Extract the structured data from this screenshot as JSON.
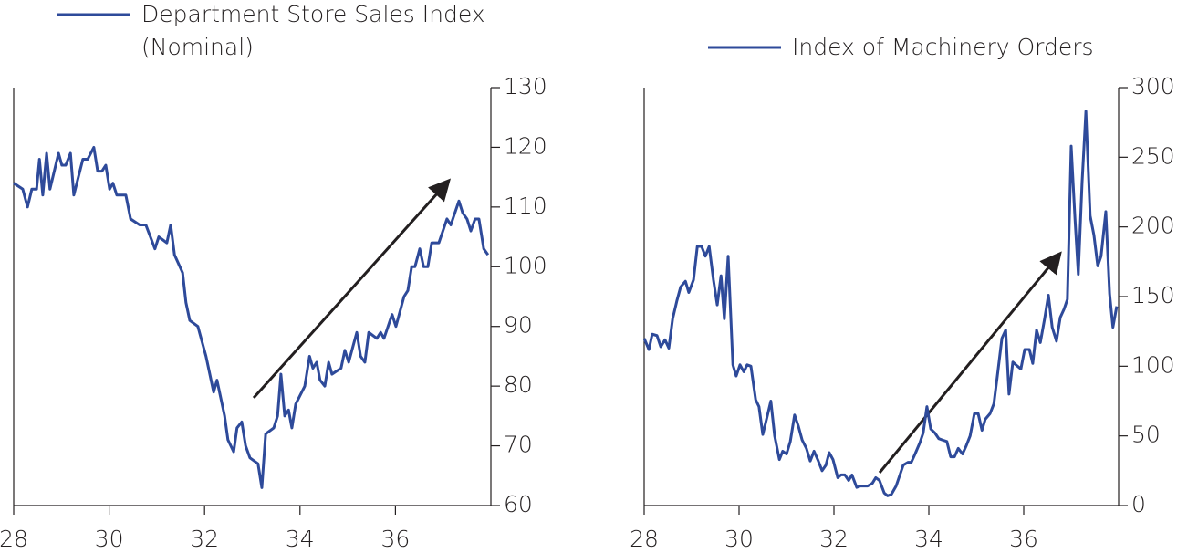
{
  "chart_data": [
    {
      "type": "line",
      "x": [
        28.0,
        28.19,
        28.29,
        28.38,
        28.48,
        28.54,
        28.61,
        28.69,
        28.76,
        28.94,
        29.01,
        29.09,
        29.19,
        29.26,
        29.45,
        29.55,
        29.68,
        29.76,
        29.85,
        29.93,
        30.01,
        30.08,
        30.16,
        30.35,
        30.45,
        30.64,
        30.77,
        30.96,
        31.04,
        31.21,
        31.29,
        31.37,
        31.54,
        31.61,
        31.69,
        31.86,
        32.03,
        32.19,
        32.26,
        32.42,
        32.49,
        32.61,
        32.68,
        32.78,
        32.86,
        32.95,
        33.12,
        33.2,
        33.28,
        33.45,
        33.53,
        33.6,
        33.68,
        33.76,
        33.83,
        33.91,
        34.1,
        34.2,
        34.27,
        34.35,
        34.42,
        34.52,
        34.6,
        34.67,
        34.86,
        34.94,
        35.02,
        35.19,
        35.27,
        35.36,
        35.44,
        35.61,
        35.69,
        35.76,
        35.93,
        36.01,
        36.18,
        36.26,
        36.34,
        36.41,
        36.51,
        36.59,
        36.68,
        36.76,
        36.91,
        37.08,
        37.16,
        37.33,
        37.41,
        37.5,
        37.58,
        37.67,
        37.75,
        37.85,
        37.94
      ],
      "series": [
        {
          "name": "Department Store Sales Index (Nominal)",
          "color": "#2e4a9a",
          "values": [
            114,
            113,
            110,
            113,
            113,
            118,
            112,
            119,
            113,
            119,
            117,
            117,
            119,
            112,
            118,
            118,
            120,
            116,
            116,
            117,
            113,
            114,
            112,
            112,
            108,
            107,
            107,
            103,
            105,
            104,
            107,
            102,
            99,
            94,
            91,
            90,
            85,
            79,
            81,
            75,
            71,
            69,
            73,
            74,
            70,
            68,
            67,
            63,
            72,
            73,
            75,
            82,
            75,
            76,
            73,
            77,
            80,
            85,
            83,
            84,
            81,
            80,
            84,
            82,
            83,
            86,
            84,
            89,
            85,
            84,
            89,
            88,
            89,
            88,
            92,
            90,
            95,
            96,
            100,
            100,
            103,
            100,
            100,
            104,
            104,
            108,
            107,
            111,
            109,
            108,
            106,
            108,
            108,
            103,
            102
          ]
        }
      ],
      "xlim": [
        28,
        38
      ],
      "xticks": [
        28,
        30,
        32,
        34,
        36
      ],
      "ylim": [
        60,
        130
      ],
      "yticks": [
        60,
        70,
        80,
        90,
        100,
        110,
        120,
        130
      ]
    },
    {
      "type": "line",
      "x": [
        28.0,
        28.1,
        28.17,
        28.27,
        28.35,
        28.44,
        28.52,
        28.6,
        28.69,
        28.77,
        28.87,
        28.94,
        29.04,
        29.12,
        29.21,
        29.29,
        29.37,
        29.46,
        29.54,
        29.62,
        29.69,
        29.77,
        29.87,
        29.94,
        30.02,
        30.1,
        30.17,
        30.25,
        30.35,
        30.42,
        30.5,
        30.6,
        30.67,
        30.75,
        30.85,
        30.92,
        31.0,
        31.08,
        31.17,
        31.25,
        31.33,
        31.42,
        31.5,
        31.58,
        31.67,
        31.75,
        31.83,
        31.9,
        31.98,
        32.08,
        32.15,
        32.23,
        32.31,
        32.38,
        32.48,
        32.56,
        32.63,
        32.71,
        32.81,
        32.88,
        32.96,
        33.06,
        33.13,
        33.21,
        33.31,
        33.38,
        33.46,
        33.56,
        33.63,
        33.71,
        33.81,
        33.88,
        33.96,
        34.04,
        34.13,
        34.21,
        34.29,
        34.38,
        34.46,
        34.54,
        34.62,
        34.71,
        34.79,
        34.87,
        34.96,
        35.04,
        35.12,
        35.19,
        35.29,
        35.37,
        35.44,
        35.54,
        35.62,
        35.69,
        35.77,
        35.87,
        35.94,
        36.02,
        36.12,
        36.19,
        36.27,
        36.35,
        36.44,
        36.52,
        36.6,
        36.69,
        36.77,
        36.85,
        36.92,
        37.0,
        37.08,
        37.15,
        37.23,
        37.31,
        37.4,
        37.48,
        37.56,
        37.63,
        37.73,
        37.81,
        37.88,
        37.96
      ],
      "series": [
        {
          "name": "Index of Machinery Orders",
          "color": "#2e4a9a",
          "values": [
            120,
            112,
            123,
            122,
            114,
            119,
            113,
            134,
            147,
            157,
            161,
            153,
            162,
            186,
            186,
            179,
            186,
            162,
            144,
            165,
            134,
            179,
            101,
            93,
            101,
            96,
            101,
            100,
            76,
            71,
            51,
            65,
            75,
            50,
            33,
            39,
            37,
            46,
            65,
            57,
            47,
            41,
            32,
            39,
            32,
            25,
            29,
            38,
            33,
            20,
            22,
            22,
            18,
            22,
            13,
            14,
            14,
            14,
            16,
            20,
            18,
            9,
            7,
            8,
            14,
            21,
            29,
            31,
            31,
            37,
            45,
            52,
            71,
            55,
            52,
            48,
            47,
            46,
            35,
            35,
            41,
            37,
            43,
            50,
            66,
            66,
            54,
            62,
            66,
            73,
            92,
            120,
            126,
            80,
            103,
            100,
            98,
            112,
            112,
            102,
            126,
            117,
            134,
            151,
            128,
            118,
            135,
            141,
            148,
            258,
            206,
            166,
            232,
            283,
            208,
            194,
            172,
            179,
            211,
            152,
            128,
            143
          ]
        }
      ],
      "xlim": [
        28,
        38
      ],
      "xticks": [
        28,
        30,
        32,
        34,
        36
      ],
      "ylim": [
        0,
        300
      ],
      "yticks": [
        0,
        50,
        100,
        150,
        200,
        250,
        300
      ]
    }
  ]
}
